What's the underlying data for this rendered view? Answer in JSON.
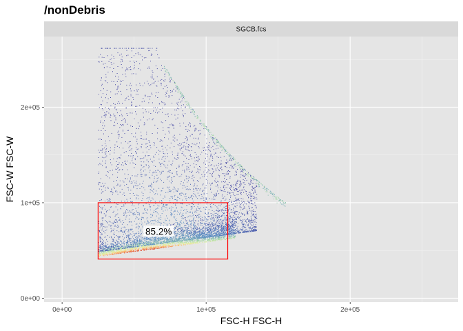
{
  "chart_data": {
    "type": "scatter",
    "title": "/nonDebris",
    "facet_label": "SGCB.fcs",
    "xlabel": "FSC-H FSC-H",
    "ylabel": "FSC-W FSC-W",
    "xlim": [
      -12500,
      275000
    ],
    "ylim": [
      -4000,
      274000
    ],
    "x_ticks": [
      {
        "value": 0,
        "label": "0e+00"
      },
      {
        "value": 100000,
        "label": "1e+05"
      },
      {
        "value": 200000,
        "label": "2e+05"
      }
    ],
    "y_ticks": [
      {
        "value": 0,
        "label": "0e+00"
      },
      {
        "value": 100000,
        "label": "1e+05"
      },
      {
        "value": 200000,
        "label": "2e+05"
      }
    ],
    "grid": true,
    "color_scale": "density (spectral: low #3f3fa0 → high #d7301f)",
    "colors": {
      "panel": "#e5e5e5",
      "strip": "#d9d9d9",
      "gate": "#ff0000",
      "density_low": "#4a4fb0",
      "density_mid": "#9bd5a4",
      "density_high": "#e04a2a"
    },
    "gate": {
      "x_range": [
        25000,
        115000
      ],
      "y_range": [
        41000,
        100000
      ],
      "label": "85.2%",
      "label_position": [
        67000,
        70000
      ]
    }
  }
}
